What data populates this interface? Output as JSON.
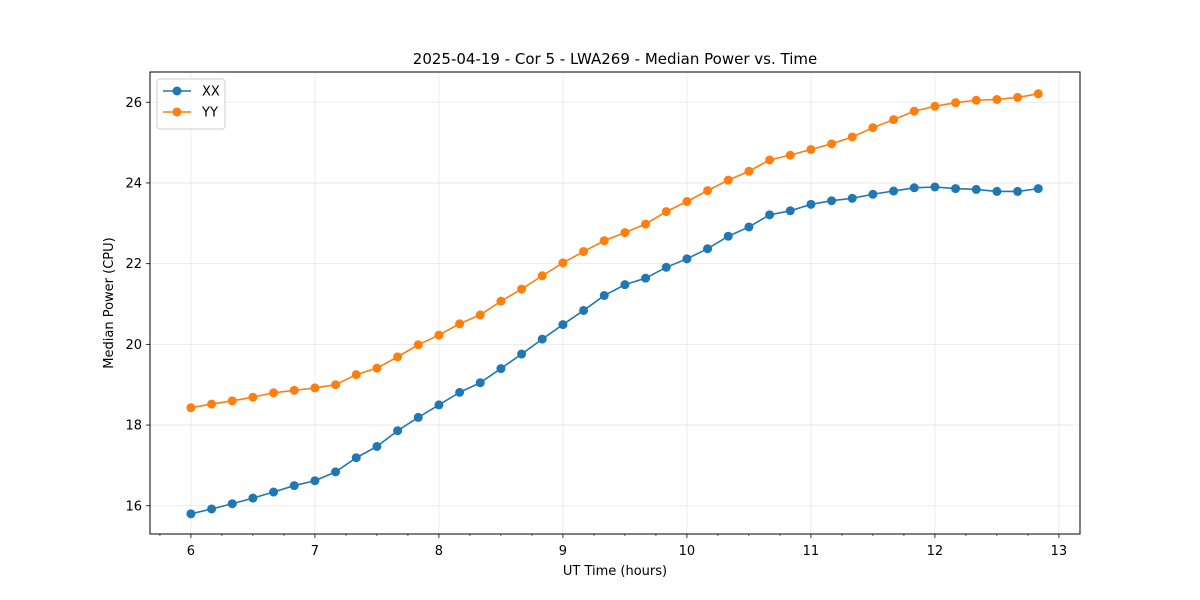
{
  "chart_data": {
    "type": "line",
    "title": "2025-04-19 - Cor 5 - LWA269 - Median Power vs. Time",
    "xlabel": "UT Time (hours)",
    "ylabel": "Median Power (CPU)",
    "xlim": [
      5.67,
      13.17
    ],
    "ylim": [
      15.3,
      26.75
    ],
    "xticks": [
      6,
      7,
      8,
      9,
      10,
      11,
      12,
      13
    ],
    "xtick_labels": [
      "6",
      "7",
      "8",
      "9",
      "10",
      "11",
      "12",
      "13"
    ],
    "yticks": [
      16,
      18,
      20,
      22,
      24,
      26
    ],
    "ytick_labels": [
      "16",
      "18",
      "20",
      "22",
      "24",
      "26"
    ],
    "x_minor_step": 0.25,
    "grid": true,
    "legend_position": "top-left",
    "x": [
      6.0,
      6.1667,
      6.3333,
      6.5,
      6.6667,
      6.8333,
      7.0,
      7.1667,
      7.3333,
      7.5,
      7.6667,
      7.8333,
      8.0,
      8.1667,
      8.3333,
      8.5,
      8.6667,
      8.8333,
      9.0,
      9.1667,
      9.3333,
      9.5,
      9.6667,
      9.8333,
      10.0,
      10.1667,
      10.3333,
      10.5,
      10.6667,
      10.8333,
      11.0,
      11.1667,
      11.3333,
      11.5,
      11.6667,
      11.8333,
      12.0,
      12.1667,
      12.3333,
      12.5,
      12.6667,
      12.8333
    ],
    "series": [
      {
        "name": "XX",
        "color": "#1f77b4",
        "values": [
          15.8,
          15.92,
          16.05,
          16.19,
          16.34,
          16.5,
          16.62,
          16.84,
          17.19,
          17.47,
          17.86,
          18.19,
          18.5,
          18.81,
          19.05,
          19.4,
          19.76,
          20.13,
          20.49,
          20.84,
          21.21,
          21.48,
          21.64,
          21.91,
          22.12,
          22.37,
          22.68,
          22.91,
          23.21,
          23.31,
          23.47,
          23.56,
          23.62,
          23.72,
          23.8,
          23.88,
          23.9,
          23.86,
          23.84,
          23.79,
          23.79,
          23.86
        ]
      },
      {
        "name": "YY",
        "color": "#ff7f0e",
        "values": [
          18.43,
          18.52,
          18.6,
          18.69,
          18.8,
          18.86,
          18.92,
          19.0,
          19.25,
          19.41,
          19.69,
          19.99,
          20.23,
          20.51,
          20.73,
          21.07,
          21.37,
          21.7,
          22.02,
          22.3,
          22.57,
          22.77,
          22.98,
          23.29,
          23.54,
          23.81,
          24.07,
          24.29,
          24.57,
          24.69,
          24.83,
          24.97,
          25.14,
          25.37,
          25.57,
          25.78,
          25.9,
          25.99,
          26.05,
          26.07,
          26.12,
          26.21
        ]
      }
    ]
  }
}
